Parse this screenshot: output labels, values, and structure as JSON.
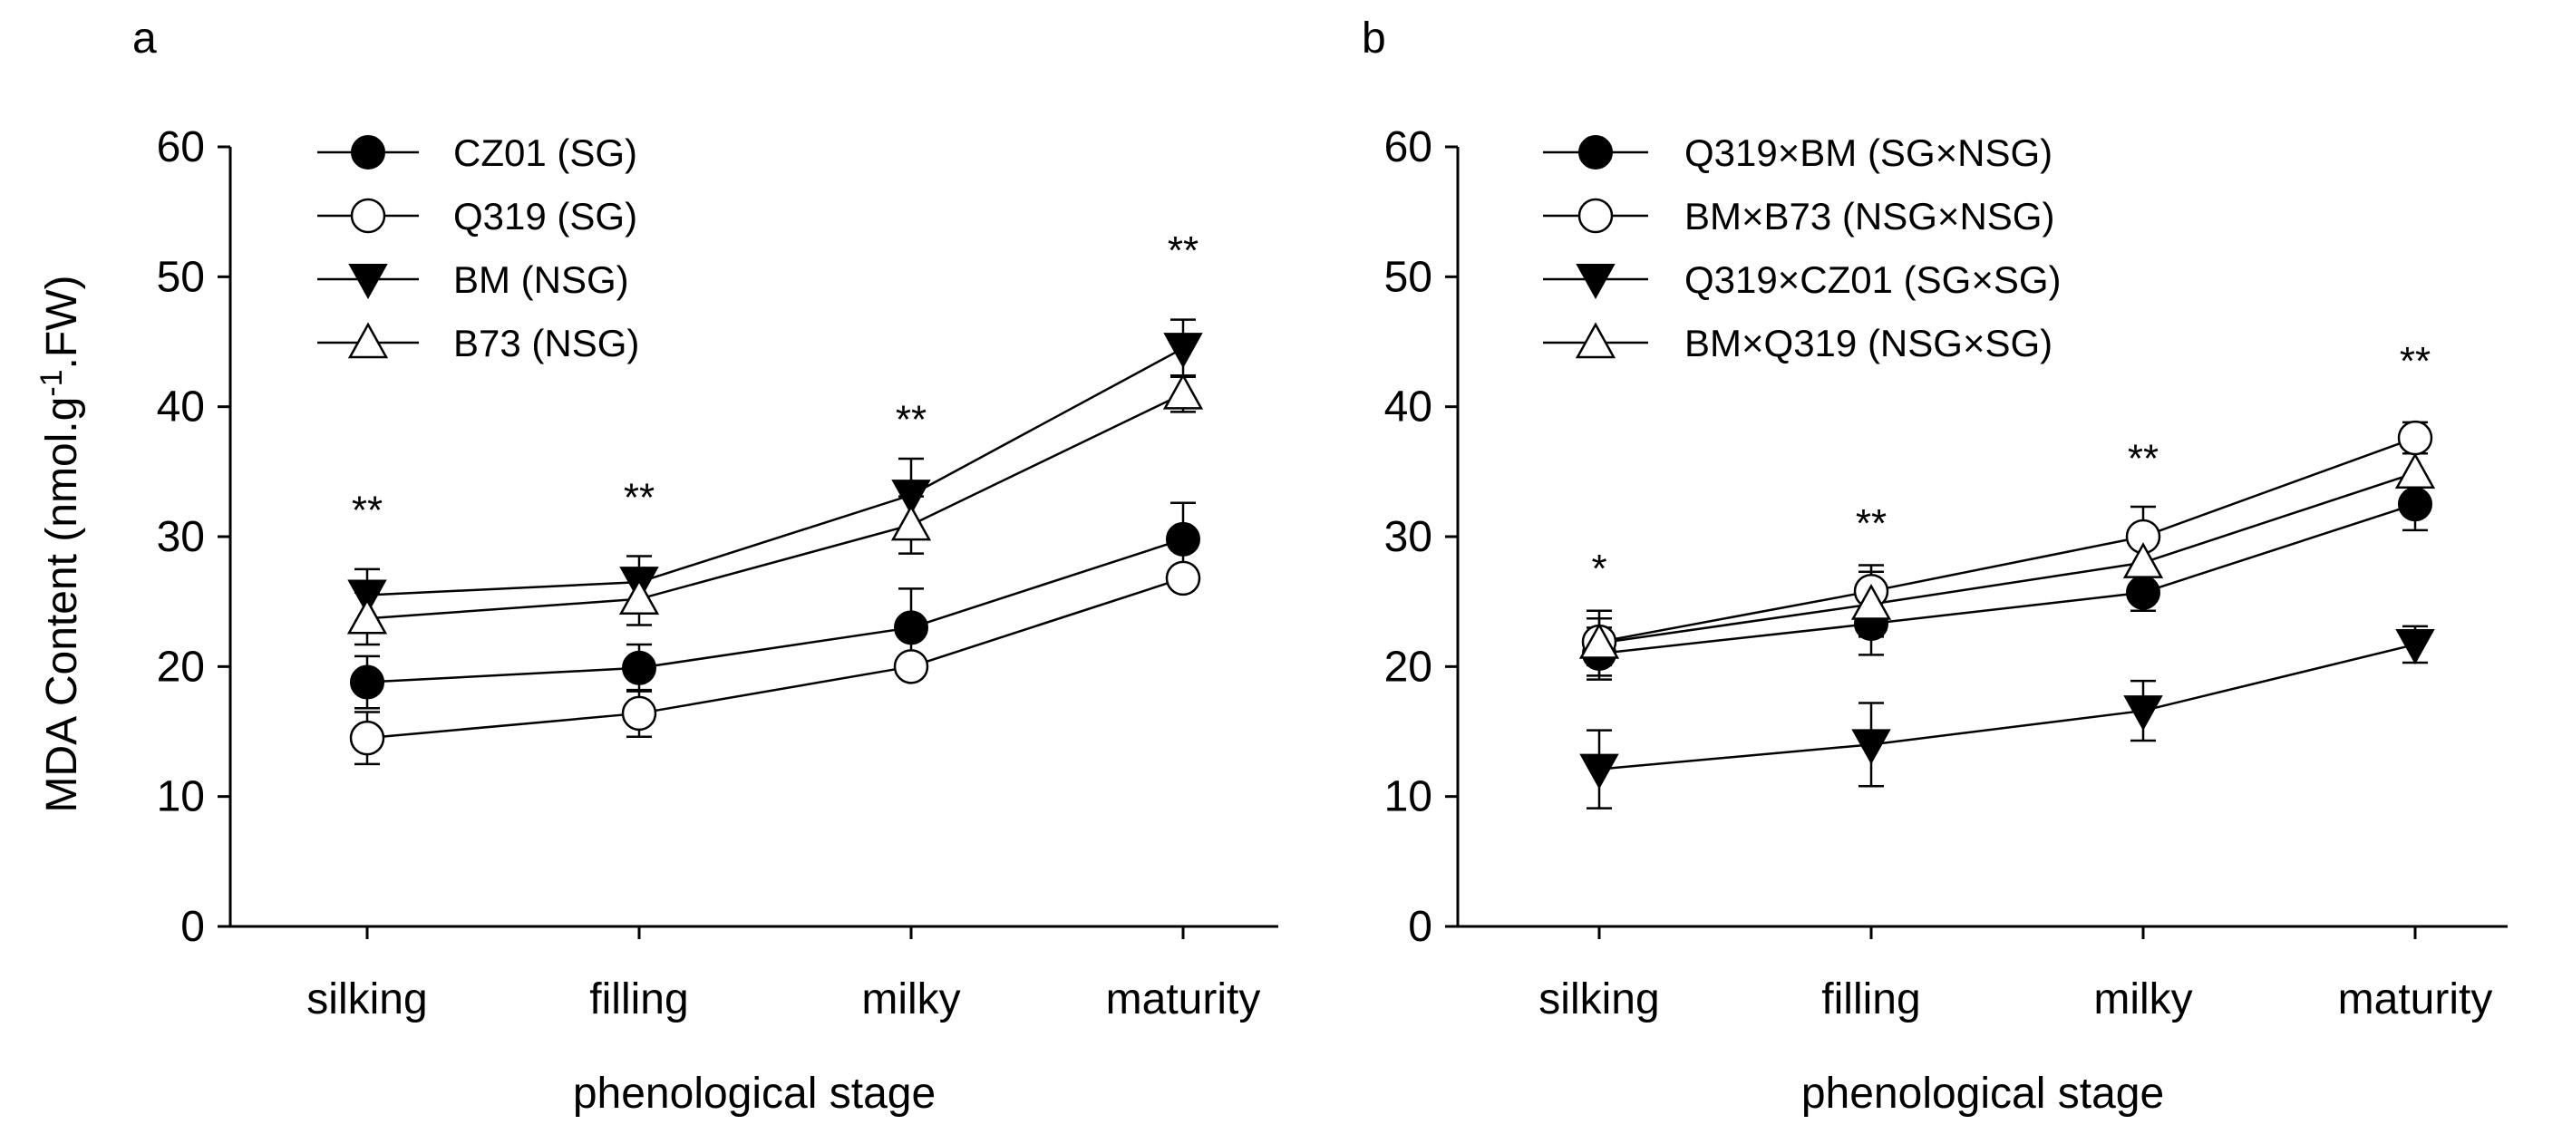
{
  "ylabel_main": "MDA Content (nmol.g",
  "ylabel_sup": "-1",
  "ylabel_tail": ".FW)",
  "chart_data": [
    {
      "type": "line",
      "panel": "a",
      "xlabel": "phenological stage",
      "categories": [
        "silking",
        "filling",
        "milky",
        "maturity"
      ],
      "ylim": [
        0,
        60
      ],
      "yticks": [
        0,
        10,
        20,
        30,
        40,
        50,
        60
      ],
      "legend_position": "top-left",
      "significance": [
        "**",
        "**",
        "**",
        "**"
      ],
      "significance_y": [
        31,
        32,
        38,
        51
      ],
      "series": [
        {
          "name": "CZ01 (SG)",
          "marker": "circle-filled",
          "values": [
            18.8,
            19.9,
            23.0,
            29.8
          ],
          "errors": [
            2.0,
            1.8,
            3.0,
            2.8
          ]
        },
        {
          "name": "Q319 (SG)",
          "marker": "circle-open",
          "values": [
            14.5,
            16.4,
            20.0,
            26.8
          ],
          "errors": [
            2.0,
            1.8,
            0.6,
            0.6
          ]
        },
        {
          "name": "BM (NSG)",
          "marker": "triangle-down-filled",
          "values": [
            25.5,
            26.5,
            33.2,
            44.5
          ],
          "errors": [
            2.0,
            2.0,
            2.8,
            2.2
          ]
        },
        {
          "name": "B73 (NSG)",
          "marker": "triangle-up-open",
          "values": [
            23.7,
            25.2,
            30.9,
            41.0
          ],
          "errors": [
            2.0,
            2.0,
            2.2,
            1.4
          ]
        }
      ]
    },
    {
      "type": "line",
      "panel": "b",
      "xlabel": "phenological stage",
      "categories": [
        "silking",
        "filling",
        "milky",
        "maturity"
      ],
      "ylim": [
        0,
        60
      ],
      "yticks": [
        0,
        10,
        20,
        30,
        40,
        50,
        60
      ],
      "legend_position": "top-left",
      "significance": [
        "*",
        "**",
        "**",
        "**"
      ],
      "significance_y": [
        26.5,
        30,
        35,
        42.5
      ],
      "series": [
        {
          "name": "Q319×BM   (SG×NSG)",
          "marker": "circle-filled",
          "values": [
            21.0,
            23.3,
            25.7,
            32.5
          ],
          "errors": [
            2.0,
            2.4,
            1.4,
            2.0
          ]
        },
        {
          "name": "BM×B73  (NSG×NSG)",
          "marker": "circle-open",
          "values": [
            21.9,
            25.8,
            30.0,
            37.6
          ],
          "errors": [
            1.8,
            2.0,
            2.3,
            1.2
          ]
        },
        {
          "name": "Q319×CZ01  (SG×SG)",
          "marker": "triangle-down-filled",
          "values": [
            12.1,
            14.0,
            16.6,
            21.7
          ],
          "errors": [
            3.0,
            3.2,
            2.3,
            1.4
          ]
        },
        {
          "name": "BM×Q319 (NSG×SG)",
          "marker": "triangle-up-open",
          "values": [
            21.8,
            24.8,
            28.0,
            34.9
          ],
          "errors": [
            2.5,
            2.5,
            2.2,
            2.5
          ]
        }
      ]
    }
  ]
}
